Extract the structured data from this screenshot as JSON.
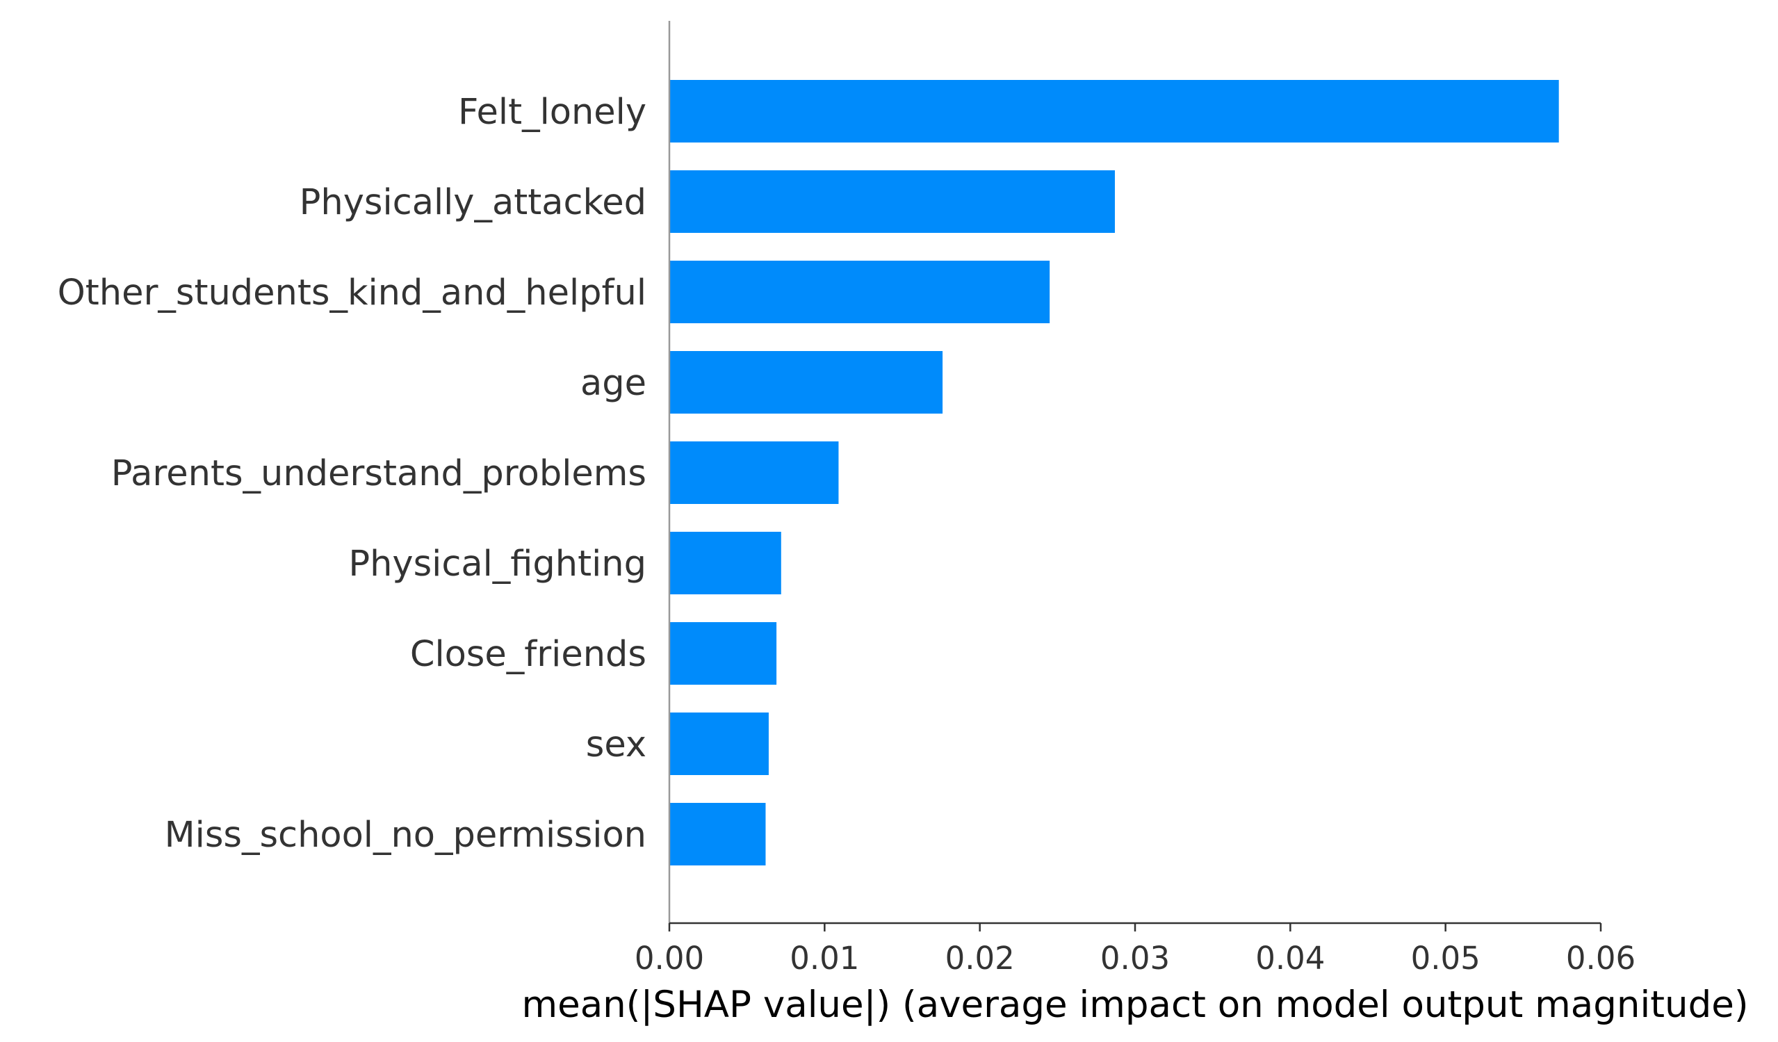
{
  "chart_data": {
    "type": "bar",
    "orientation": "horizontal",
    "categories": [
      "Felt_lonely",
      "Physically_attacked",
      "Other_students_kind_and_helpful",
      "age",
      "Parents_understand_problems",
      "Physical_fighting",
      "Close_friends",
      "sex",
      "Miss_school_no_permission"
    ],
    "values": [
      0.0573,
      0.0287,
      0.0245,
      0.0176,
      0.0109,
      0.0072,
      0.0069,
      0.0064,
      0.0062
    ],
    "xlabel": "mean(|SHAP value|) (average impact on model output magnitude)",
    "xlim": [
      0,
      0.06
    ],
    "xticks": [
      0,
      0.01,
      0.02,
      0.03,
      0.04,
      0.05,
      0.06
    ],
    "xtick_labels": [
      "0.00",
      "0.01",
      "0.02",
      "0.03",
      "0.04",
      "0.05",
      "0.06"
    ],
    "grid": false,
    "colors": {
      "bar": "#008bfb",
      "axis": "#333333",
      "spine": "#999999"
    }
  }
}
